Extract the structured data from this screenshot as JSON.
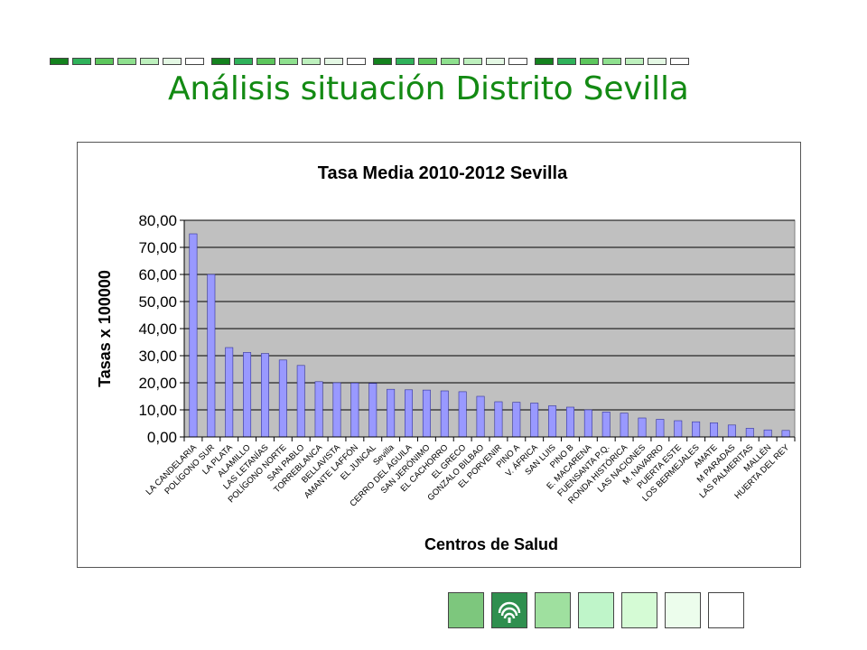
{
  "slide": {
    "title": "Análisis situación Distrito Sevilla"
  },
  "colors": {
    "title": "#138a13",
    "plot_background": "#c0c0c0",
    "bar_fill": "#9999ff",
    "bar_stroke": "#333399",
    "deco_palette": [
      "#14821e",
      "#2fb25a",
      "#5cc65c",
      "#8ee08e",
      "#bdf0bd",
      "#e4f8e4",
      "#ffffff"
    ],
    "footer_palette": [
      "#7dc77d",
      "#2f8f4f",
      "#9fe09f",
      "#bff5c9",
      "#d5fbd5",
      "#ecfdec",
      "#ffffff"
    ]
  },
  "icons": {
    "footer_logo": "junta-andalucia-logo-icon"
  },
  "chart_data": {
    "type": "bar",
    "title": "Tasa Media 2010-2012 Sevilla",
    "xlabel": "Centros de Salud",
    "ylabel": "Tasas x 100000",
    "ylim": [
      0,
      80
    ],
    "yticks": [
      "0,00",
      "10,00",
      "20,00",
      "30,00",
      "40,00",
      "50,00",
      "60,00",
      "70,00",
      "80,00"
    ],
    "grid": true,
    "legend": "none",
    "categories": [
      "LA CANDELARIA",
      "POLÍGONO SUR",
      "LA PLATA",
      "ALAMILLO",
      "LAS LETANÍAS",
      "POLÍGONO NORTE",
      "SAN PABLO",
      "TORREBLANCA",
      "BELLAVISTA",
      "AMANTE LAFFÓN",
      "EL JUNCAL",
      "Sevilla",
      "CERRO DEL ÁGUILA",
      "SAN JERÓNIMO",
      "EL CACHORRO",
      "EL GRECO",
      "GONZALO BILBAO",
      "EL PORVENIR",
      "PINO A",
      "V. ÁFRICA",
      "SAN LUIS",
      "PINO B",
      "E. MACARENA",
      "FUENSANTA P.Q.",
      "RONDA HISTÓRICA",
      "LAS NACIONES",
      "M. NAVARRO",
      "PUERTA ESTE",
      "LOS BERMEJALES",
      "AMATE",
      "M PARADAS",
      "LAS PALMERITAS",
      "MALLÉN",
      "HUERTA DEL REY"
    ],
    "values": [
      75.0,
      60.0,
      33.0,
      31.2,
      30.8,
      28.4,
      26.4,
      20.4,
      20.0,
      19.9,
      19.8,
      17.6,
      17.4,
      17.3,
      17.0,
      16.7,
      15.0,
      13.0,
      12.8,
      12.5,
      11.5,
      11.0,
      10.0,
      9.2,
      8.8,
      7.0,
      6.5,
      6.0,
      5.6,
      5.2,
      4.4,
      3.2,
      2.6,
      2.4
    ]
  }
}
